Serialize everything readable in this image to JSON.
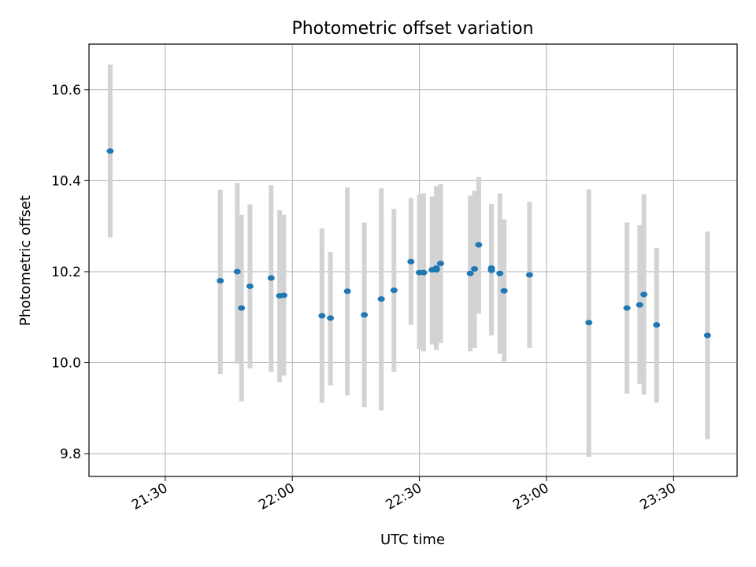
{
  "chart_data": {
    "type": "scatter",
    "title": "Photometric offset variation",
    "xlabel": "UTC time",
    "ylabel": "Photometric offset",
    "x_axis": {
      "kind": "time",
      "range": [
        "21:12",
        "23:45"
      ],
      "ticks": [
        "21:30",
        "22:00",
        "22:30",
        "23:00",
        "23:30"
      ]
    },
    "y_axis": {
      "range": [
        9.75,
        10.7
      ],
      "ticks": [
        "9.8",
        "10.0",
        "10.2",
        "10.4",
        "10.6"
      ]
    },
    "grid": true,
    "marker_color": "#1f77b4",
    "errorbar_color": "#d3d3d3",
    "points": [
      {
        "t": "21:17",
        "y": 10.465,
        "lo": 10.275,
        "hi": 10.655
      },
      {
        "t": "21:43",
        "y": 10.18,
        "lo": 9.975,
        "hi": 10.38
      },
      {
        "t": "21:47",
        "y": 10.2,
        "lo": 9.998,
        "hi": 10.395
      },
      {
        "t": "21:48",
        "y": 10.12,
        "lo": 9.915,
        "hi": 10.325
      },
      {
        "t": "21:50",
        "y": 10.168,
        "lo": 9.988,
        "hi": 10.348
      },
      {
        "t": "21:55",
        "y": 10.186,
        "lo": 9.98,
        "hi": 10.39
      },
      {
        "t": "21:57",
        "y": 10.147,
        "lo": 9.957,
        "hi": 10.335
      },
      {
        "t": "21:58",
        "y": 10.148,
        "lo": 9.972,
        "hi": 10.325
      },
      {
        "t": "22:07",
        "y": 10.103,
        "lo": 9.912,
        "hi": 10.295
      },
      {
        "t": "22:09",
        "y": 10.098,
        "lo": 9.95,
        "hi": 10.243
      },
      {
        "t": "22:13",
        "y": 10.157,
        "lo": 9.928,
        "hi": 10.385
      },
      {
        "t": "22:17",
        "y": 10.105,
        "lo": 9.902,
        "hi": 10.308
      },
      {
        "t": "22:21",
        "y": 10.14,
        "lo": 9.895,
        "hi": 10.383
      },
      {
        "t": "22:24",
        "y": 10.159,
        "lo": 9.98,
        "hi": 10.338
      },
      {
        "t": "22:28",
        "y": 10.222,
        "lo": 10.083,
        "hi": 10.362
      },
      {
        "t": "22:30",
        "y": 10.198,
        "lo": 10.03,
        "hi": 10.37
      },
      {
        "t": "22:31",
        "y": 10.198,
        "lo": 10.025,
        "hi": 10.372
      },
      {
        "t": "22:33",
        "y": 10.204,
        "lo": 10.04,
        "hi": 10.365
      },
      {
        "t": "22:34",
        "y": 10.208,
        "lo": 10.028,
        "hi": 10.388
      },
      {
        "t": "22:34",
        "y": 10.204,
        "lo": 10.032,
        "hi": 10.376
      },
      {
        "t": "22:35",
        "y": 10.218,
        "lo": 10.043,
        "hi": 10.392
      },
      {
        "t": "22:42",
        "y": 10.196,
        "lo": 10.025,
        "hi": 10.367
      },
      {
        "t": "22:43",
        "y": 10.206,
        "lo": 10.032,
        "hi": 10.378
      },
      {
        "t": "22:44",
        "y": 10.259,
        "lo": 10.108,
        "hi": 10.408
      },
      {
        "t": "22:47",
        "y": 10.203,
        "lo": 10.06,
        "hi": 10.346
      },
      {
        "t": "22:47",
        "y": 10.208,
        "lo": 10.066,
        "hi": 10.349
      },
      {
        "t": "22:49",
        "y": 10.196,
        "lo": 10.02,
        "hi": 10.372
      },
      {
        "t": "22:50",
        "y": 10.158,
        "lo": 10.002,
        "hi": 10.315
      },
      {
        "t": "22:56",
        "y": 10.193,
        "lo": 10.032,
        "hi": 10.354
      },
      {
        "t": "23:10",
        "y": 10.088,
        "lo": 9.793,
        "hi": 10.381
      },
      {
        "t": "23:19",
        "y": 10.12,
        "lo": 9.932,
        "hi": 10.308
      },
      {
        "t": "23:22",
        "y": 10.127,
        "lo": 9.953,
        "hi": 10.302
      },
      {
        "t": "23:23",
        "y": 10.15,
        "lo": 9.93,
        "hi": 10.37
      },
      {
        "t": "23:26",
        "y": 10.083,
        "lo": 9.912,
        "hi": 10.252
      },
      {
        "t": "23:38",
        "y": 10.06,
        "lo": 9.832,
        "hi": 10.288
      }
    ]
  }
}
